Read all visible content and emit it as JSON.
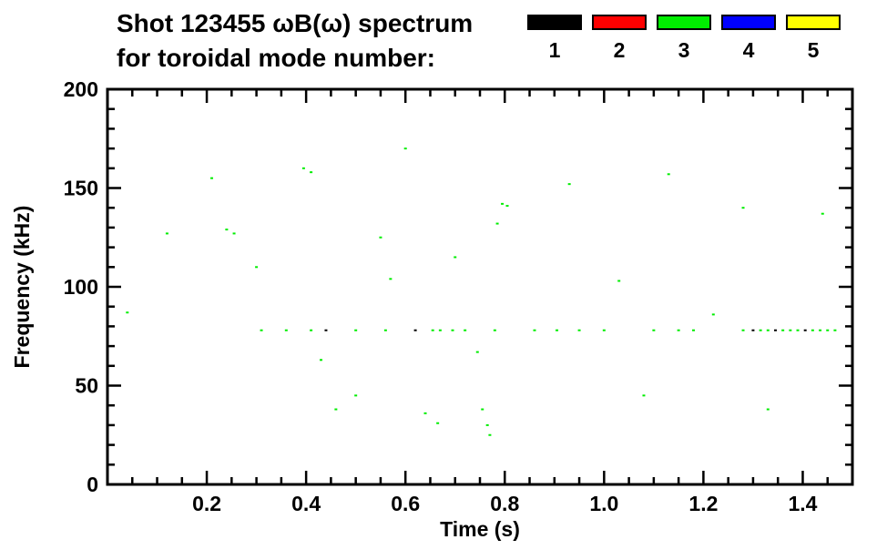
{
  "title": {
    "line1": "Shot 123455 ωB(ω) spectrum",
    "line2": "for toroidal mode number:"
  },
  "legend": {
    "position": "top-right",
    "modes": [
      {
        "label": "1",
        "color": "#000000"
      },
      {
        "label": "2",
        "color": "#ff0000"
      },
      {
        "label": "3",
        "color": "#00ee00"
      },
      {
        "label": "4",
        "color": "#0000ff"
      },
      {
        "label": "5",
        "color": "#ffff00"
      }
    ]
  },
  "chart_data": {
    "type": "scatter",
    "title": "Shot 123455 ωB(ω) spectrum for toroidal mode number: 1 2 3 4 5",
    "xlabel": "Time (s)",
    "ylabel": "Frequency (kHz)",
    "xlim": [
      0,
      1.5
    ],
    "ylim": [
      0,
      200
    ],
    "xticks": [
      0.2,
      0.4,
      0.6,
      0.8,
      1.0,
      1.2,
      1.4
    ],
    "xtick_labels": [
      "0.2",
      "0.4",
      "0.6",
      "0.8",
      "1.0",
      "1.2",
      "1.4"
    ],
    "yticks": [
      0,
      50,
      100,
      150,
      200
    ],
    "ytick_labels": [
      "0",
      "50",
      "100",
      "150",
      "200"
    ],
    "xminor": 0.05,
    "yminor": 10,
    "grid": false,
    "point_format": [
      "time_s",
      "frequency_kHz",
      "mode_number"
    ],
    "points": [
      [
        0.31,
        78,
        3
      ],
      [
        0.36,
        78,
        3
      ],
      [
        0.41,
        78,
        3
      ],
      [
        0.44,
        78,
        1
      ],
      [
        0.5,
        78,
        3
      ],
      [
        0.56,
        78,
        3
      ],
      [
        0.62,
        78,
        1
      ],
      [
        0.655,
        78,
        3
      ],
      [
        0.67,
        78,
        3
      ],
      [
        0.695,
        78,
        3
      ],
      [
        0.72,
        78,
        3
      ],
      [
        0.78,
        78,
        3
      ],
      [
        0.86,
        78,
        3
      ],
      [
        0.905,
        78,
        3
      ],
      [
        0.95,
        78,
        3
      ],
      [
        1.0,
        78,
        3
      ],
      [
        1.1,
        78,
        3
      ],
      [
        1.15,
        78,
        3
      ],
      [
        1.18,
        78,
        3
      ],
      [
        1.28,
        78,
        3
      ],
      [
        1.3,
        78,
        1
      ],
      [
        1.315,
        78,
        3
      ],
      [
        1.33,
        78,
        3
      ],
      [
        1.345,
        78,
        1
      ],
      [
        1.36,
        78,
        3
      ],
      [
        1.375,
        78,
        3
      ],
      [
        1.39,
        78,
        3
      ],
      [
        1.405,
        78,
        1
      ],
      [
        1.42,
        78,
        3
      ],
      [
        1.435,
        78,
        3
      ],
      [
        1.45,
        78,
        3
      ],
      [
        1.465,
        78,
        3
      ],
      [
        0.04,
        87,
        3
      ],
      [
        0.12,
        127,
        3
      ],
      [
        0.21,
        155,
        3
      ],
      [
        0.24,
        129,
        3
      ],
      [
        0.255,
        127,
        3
      ],
      [
        0.3,
        110,
        3
      ],
      [
        0.395,
        160,
        3
      ],
      [
        0.41,
        158,
        3
      ],
      [
        0.43,
        63,
        3
      ],
      [
        0.46,
        38,
        3
      ],
      [
        0.5,
        45,
        3
      ],
      [
        0.55,
        125,
        3
      ],
      [
        0.57,
        104,
        3
      ],
      [
        0.6,
        170,
        3
      ],
      [
        0.64,
        36,
        3
      ],
      [
        0.665,
        31,
        3
      ],
      [
        0.7,
        115,
        3
      ],
      [
        0.745,
        67,
        3
      ],
      [
        0.755,
        38,
        3
      ],
      [
        0.765,
        30,
        3
      ],
      [
        0.77,
        25,
        3
      ],
      [
        0.785,
        132,
        3
      ],
      [
        0.795,
        142,
        3
      ],
      [
        0.805,
        141,
        3
      ],
      [
        0.93,
        152,
        3
      ],
      [
        1.03,
        103,
        3
      ],
      [
        1.08,
        45,
        3
      ],
      [
        1.13,
        157,
        3
      ],
      [
        1.22,
        86,
        3
      ],
      [
        1.28,
        140,
        3
      ],
      [
        1.33,
        38,
        3
      ],
      [
        1.44,
        137,
        3
      ]
    ]
  }
}
